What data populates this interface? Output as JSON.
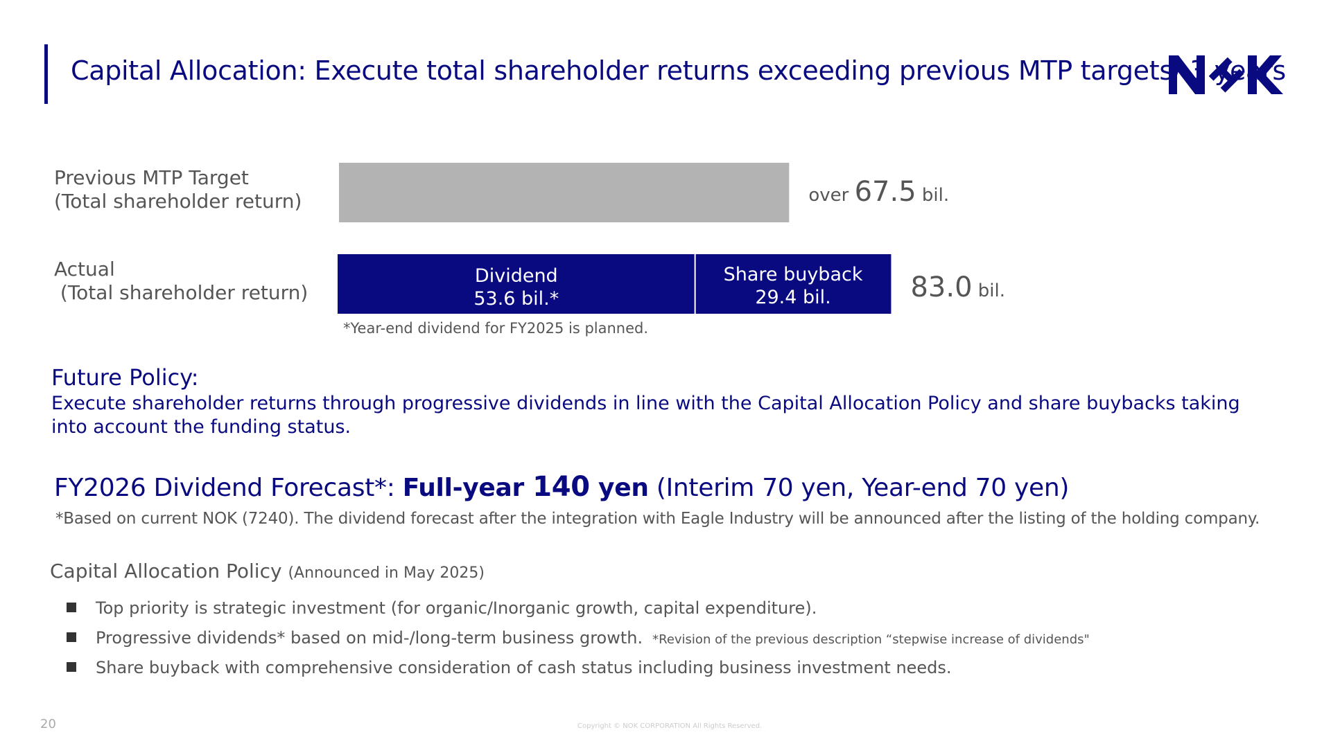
{
  "header": {
    "title": "Capital Allocation: Execute total shareholder returns exceeding previous MTP targets/ 3 years",
    "logo_text": "NOK",
    "logo_color": "#0a0a80"
  },
  "rows": {
    "prev_label_line1": "Previous MTP Target",
    "prev_label_line2": "(Total shareholder return)",
    "actual_label_line1": "Actual",
    "actual_label_line2": " (Total shareholder return)"
  },
  "chart_data": {
    "type": "bar",
    "orientation": "horizontal",
    "stacked": true,
    "unit": "bil.",
    "categories": [
      "Previous MTP Target (Total shareholder return)",
      "Actual (Total shareholder return)"
    ],
    "series": [
      {
        "name": "Previous MTP Target",
        "values": [
          67.5,
          null
        ],
        "color": "#b3b3b3"
      },
      {
        "name": "Dividend",
        "values": [
          null,
          53.6
        ],
        "color": "#0a0a80",
        "label_line1": "Dividend",
        "label_line2": "53.6 bil.*"
      },
      {
        "name": "Share buyback",
        "values": [
          null,
          29.4
        ],
        "color": "#0a0a80",
        "label_line1": "Share buyback",
        "label_line2": "29.4 bil."
      }
    ],
    "totals": [
      {
        "prefix": "over ",
        "value": "67.5",
        "suffix": " bil."
      },
      {
        "prefix": "",
        "value": "83.0",
        "suffix": " bil."
      }
    ],
    "footnote": "*Year-end dividend for FY2025 is planned."
  },
  "future": {
    "heading": "Future Policy:",
    "text": "Execute shareholder returns through progressive dividends in line with the Capital Allocation Policy and share buybacks taking into account the funding status."
  },
  "forecast": {
    "prefix": "FY2026 Dividend Forecast*: ",
    "bold_part1": "Full-year ",
    "bold_number": "140",
    "bold_part2": " yen",
    "suffix": " (Interim 70 yen, Year-end 70 yen)",
    "note": "*Based on current NOK (7240). The dividend forecast after the integration with Eagle Industry will be announced after the listing of the holding company."
  },
  "policy": {
    "heading": "Capital Allocation Policy ",
    "heading_small": "(Announced in May 2025)",
    "items": [
      {
        "text": "Top priority is strategic investment (for organic/Inorganic growth, capital expenditure).",
        "note": ""
      },
      {
        "text": "Progressive dividends* based on mid-/long-term business growth.",
        "note": "*Revision of the previous description “stepwise increase of dividends\""
      },
      {
        "text": "Share buyback with comprehensive consideration of cash status including business investment needs.",
        "note": ""
      }
    ]
  },
  "footer": {
    "page_number": "20",
    "copyright": "Copyright © NOK CORPORATION All Rights Reserved."
  }
}
